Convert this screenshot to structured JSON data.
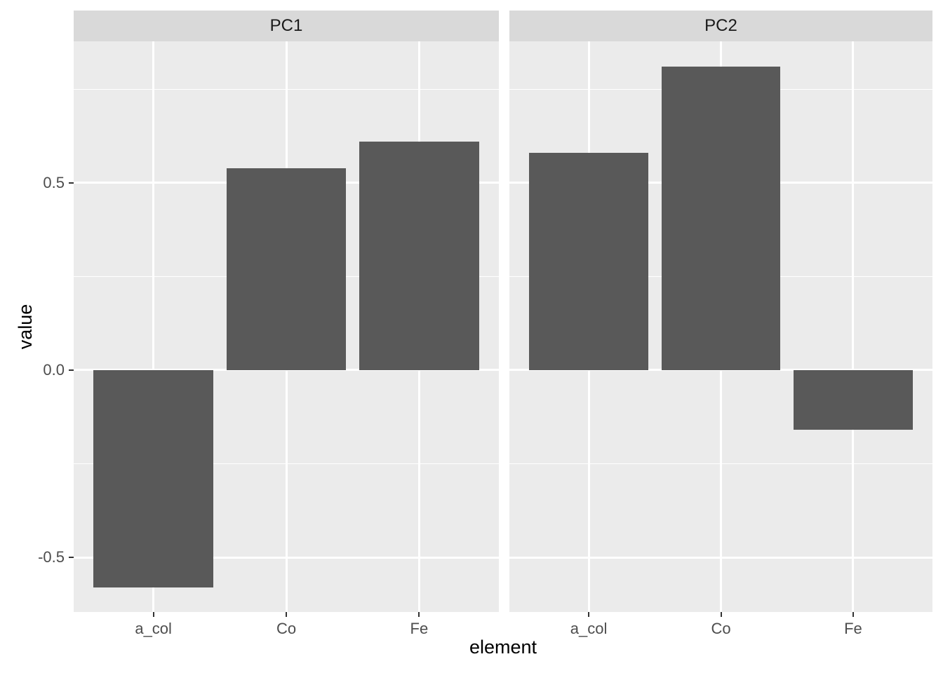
{
  "chart_data": {
    "type": "bar",
    "title": "",
    "xlabel": "element",
    "ylabel": "value",
    "categories": [
      "a_col",
      "Co",
      "Fe"
    ],
    "facets": [
      {
        "label": "PC1",
        "values": [
          -0.58,
          0.54,
          0.61
        ]
      },
      {
        "label": "PC2",
        "values": [
          0.58,
          0.81,
          -0.16
        ]
      }
    ],
    "y_ticks": [
      {
        "label": "0.5",
        "value": 0.5
      },
      {
        "label": "0.0",
        "value": 0.0
      },
      {
        "label": "-0.5",
        "value": -0.5
      }
    ],
    "y_minor_ticks": [
      0.75,
      0.25,
      -0.25
    ],
    "ylim": [
      -0.646,
      0.878
    ],
    "grid": "white major and minor horizontal lines, white major vertical lines at category centers",
    "legend_position": "none",
    "colors": {
      "bar": "#595959",
      "panel_bg": "#EBEBEB",
      "strip_bg": "#D9D9D9",
      "gridline": "#FFFFFF",
      "axis_text": "#4D4D4D",
      "strip_text": "#1A1A1A",
      "title_text": "#000000",
      "tick_mark": "#333333",
      "background": "#FFFFFF"
    }
  }
}
